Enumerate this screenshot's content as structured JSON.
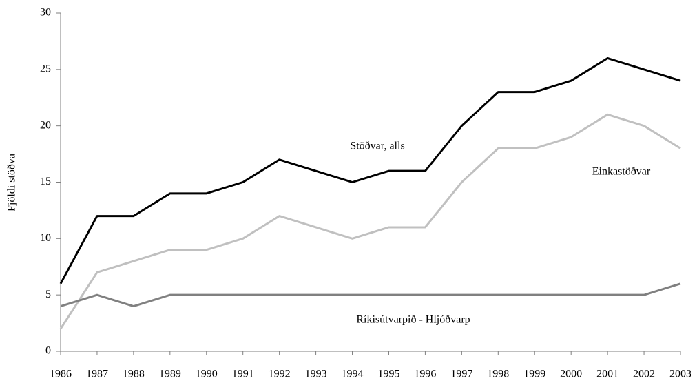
{
  "chart_data": {
    "type": "line",
    "y_label": "Fjöldi stöðva",
    "x": [
      1986,
      1987,
      1988,
      1989,
      1990,
      1991,
      1992,
      1993,
      1994,
      1995,
      1996,
      1997,
      1998,
      1999,
      2000,
      2001,
      2002,
      2003
    ],
    "xlim": [
      1986,
      2003
    ],
    "xticks": [
      1986,
      1987,
      1988,
      1989,
      1990,
      1991,
      1992,
      1993,
      1994,
      1995,
      1996,
      1997,
      1998,
      1999,
      2000,
      2001,
      2002,
      2003
    ],
    "ylim": [
      0,
      30
    ],
    "yticks": [
      0,
      5,
      10,
      15,
      20,
      25,
      30
    ],
    "grid": false,
    "series": [
      {
        "name": "Stöðvar, alls",
        "color": "#000000",
        "values": [
          6,
          12,
          12,
          14,
          14,
          15,
          17,
          16,
          15,
          16,
          16,
          20,
          23,
          23,
          24,
          26,
          25,
          24
        ]
      },
      {
        "name": "Einkastöðvar",
        "color": "#c0c0c0",
        "values": [
          2,
          7,
          8,
          9,
          9,
          10,
          12,
          11,
          10,
          11,
          11,
          15,
          18,
          18,
          19,
          21,
          20,
          18
        ]
      },
      {
        "name": "Ríkisútvarpið - Hljóðvarp",
        "color": "#808080",
        "values": [
          4,
          5,
          4,
          5,
          5,
          5,
          5,
          5,
          5,
          5,
          5,
          5,
          5,
          5,
          5,
          5,
          5,
          6
        ]
      }
    ]
  }
}
